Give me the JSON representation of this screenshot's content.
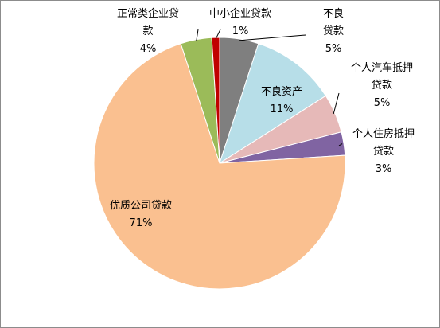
{
  "chart_data": {
    "type": "pie",
    "slices": [
      {
        "label": "不良贷款",
        "value": 5,
        "value_label": "5%",
        "color": "#7f7f7f",
        "label_lines": [
          "不良",
          "贷款"
        ]
      },
      {
        "label": "不良资产",
        "value": 11,
        "value_label": "11%",
        "color": "#b7dee8",
        "label_lines": [
          "不良资产"
        ]
      },
      {
        "label": "个人汽车抵押贷款",
        "value": 5,
        "value_label": "5%",
        "color": "#e6b9b8",
        "label_lines": [
          "个人汽车抵押",
          "贷款"
        ]
      },
      {
        "label": "个人住房抵押贷款",
        "value": 3,
        "value_label": "3%",
        "color": "#8064a2",
        "label_lines": [
          "个人住房抵押",
          "贷款"
        ]
      },
      {
        "label": "优质公司贷款",
        "value": 71,
        "value_label": "71%",
        "color": "#fac090",
        "label_lines": [
          "优质公司贷款"
        ]
      },
      {
        "label": "正常类企业贷款",
        "value": 4,
        "value_label": "4%",
        "color": "#9bbb59",
        "label_lines": [
          "正常类企业贷",
          "款"
        ]
      },
      {
        "label": "中小企业贷款",
        "value": 1,
        "value_label": "1%",
        "color": "#c00000",
        "label_lines": [
          "中小企业贷款"
        ]
      }
    ],
    "start_angle_deg": 0,
    "direction": "clockwise"
  }
}
